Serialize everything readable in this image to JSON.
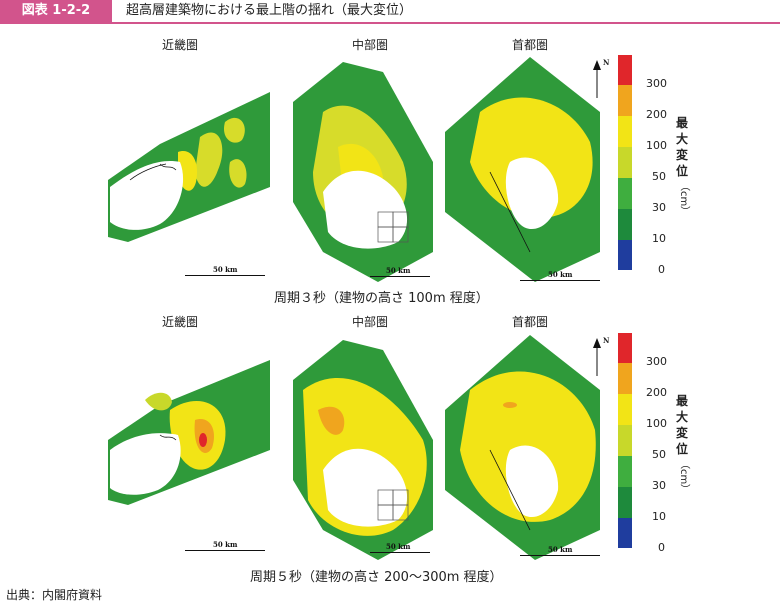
{
  "figure": {
    "number": "図表 1-2-2",
    "title": "超高層建築物における最上階の揺れ（最大変位）"
  },
  "regions": [
    "近畿圏",
    "中部圏",
    "首都圏"
  ],
  "scale_label": "50 km",
  "north_label": "N",
  "rows": [
    {
      "caption": "周期３秒（建物の高さ 100m 程度）"
    },
    {
      "caption": "周期５秒（建物の高さ 200～300m 程度）"
    }
  ],
  "legend": {
    "title": "最大変位",
    "unit": "（cm）",
    "ticks": [
      "300",
      "200",
      "100",
      "50",
      "30",
      "10",
      "0"
    ],
    "colors": {
      "0-10": "#1f3d9e",
      "10-30": "#1e8a3c",
      "30-50": "#3fae3f",
      "50-100": "#c8d82a",
      "100-200": "#f2e416",
      "200-300": "#f0a51e",
      "300+": "#e0262b"
    }
  },
  "source": "出典：内閣府資料"
}
